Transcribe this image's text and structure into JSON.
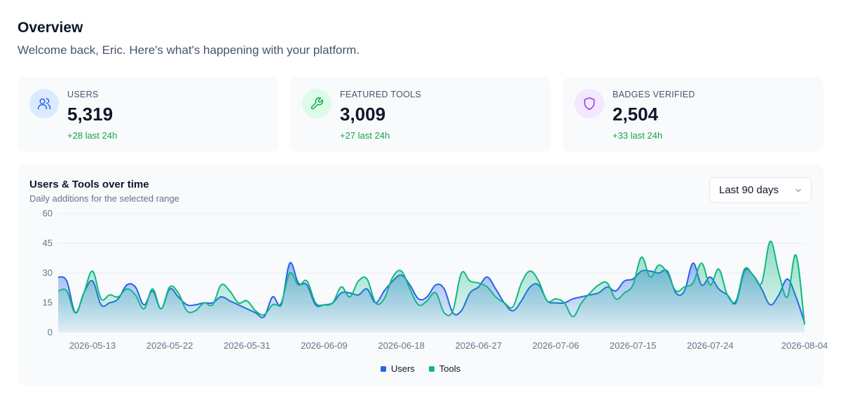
{
  "header": {
    "title": "Overview",
    "subtitle": "Welcome back, Eric. Here's what's happening with your platform."
  },
  "stats": [
    {
      "label": "USERS",
      "value": "5,319",
      "delta": "+28 last 24h",
      "icon": "users-icon",
      "icon_color": "#2563eb",
      "icon_bg": "#dbeafe"
    },
    {
      "label": "FEATURED TOOLS",
      "value": "3,009",
      "delta": "+27 last 24h",
      "icon": "wrench-icon",
      "icon_color": "#16a34a",
      "icon_bg": "#dcfce7"
    },
    {
      "label": "BADGES VERIFIED",
      "value": "2,504",
      "delta": "+33 last 24h",
      "icon": "shield-icon",
      "icon_color": "#9333ea",
      "icon_bg": "#f3e8ff"
    }
  ],
  "chart": {
    "title": "Users & Tools over time",
    "subtitle": "Daily additions for the selected range",
    "range_select": {
      "value": "Last 90 days",
      "icon": "chevron-down-icon"
    },
    "legend": [
      {
        "name": "Users",
        "color": "#2563eb"
      },
      {
        "name": "Tools",
        "color": "#10b981"
      }
    ]
  },
  "chart_data": {
    "type": "area",
    "title": "Users & Tools over time",
    "ylim": [
      0,
      60
    ],
    "y_ticks": [
      "0",
      "15",
      "30",
      "45",
      "60"
    ],
    "x_start": "2026-05-09",
    "x_tick_labels": [
      "2026-05-13",
      "2026-05-22",
      "2026-05-31",
      "2026-06-09",
      "2026-06-18",
      "2026-06-27",
      "2026-07-06",
      "2026-07-15",
      "2026-07-24",
      "2026-08-04"
    ],
    "x_tick_day_index": [
      4,
      13,
      22,
      31,
      40,
      49,
      58,
      67,
      76,
      87
    ],
    "grid": true,
    "legend_position": "bottom",
    "series": [
      {
        "name": "Users",
        "color": "#2563eb",
        "values": [
          28,
          26,
          10,
          20,
          26,
          14,
          15,
          17,
          24,
          23,
          14,
          21,
          12,
          22,
          18,
          14,
          14,
          15,
          15,
          18,
          16,
          14,
          12,
          10,
          8,
          18,
          14,
          35,
          25,
          24,
          14,
          14,
          15,
          20,
          20,
          19,
          22,
          15,
          21,
          26,
          29,
          24,
          17,
          18,
          24,
          22,
          10,
          11,
          20,
          23,
          28,
          22,
          15,
          11,
          16,
          23,
          24,
          16,
          15,
          15,
          17,
          18,
          19,
          20,
          23,
          21,
          26,
          27,
          31,
          31,
          30,
          31,
          20,
          21,
          35,
          24,
          28,
          22,
          19,
          15,
          31,
          29,
          22,
          14,
          19,
          27,
          18,
          5
        ]
      },
      {
        "name": "Tools",
        "color": "#10b981",
        "values": [
          21,
          21,
          10,
          20,
          31,
          17,
          19,
          18,
          22,
          19,
          12,
          22,
          12,
          23,
          20,
          11,
          11,
          15,
          14,
          24,
          21,
          15,
          16,
          11,
          9,
          14,
          15,
          30,
          24,
          26,
          15,
          14,
          15,
          23,
          18,
          26,
          27,
          15,
          17,
          28,
          31,
          22,
          14,
          16,
          20,
          10,
          11,
          30,
          26,
          25,
          23,
          18,
          15,
          13,
          25,
          31,
          26,
          16,
          17,
          15,
          8,
          15,
          20,
          24,
          25,
          17,
          20,
          24,
          38,
          28,
          34,
          30,
          21,
          23,
          25,
          35,
          24,
          32,
          19,
          16,
          32,
          29,
          25,
          46,
          30,
          18,
          39,
          4
        ]
      }
    ]
  }
}
